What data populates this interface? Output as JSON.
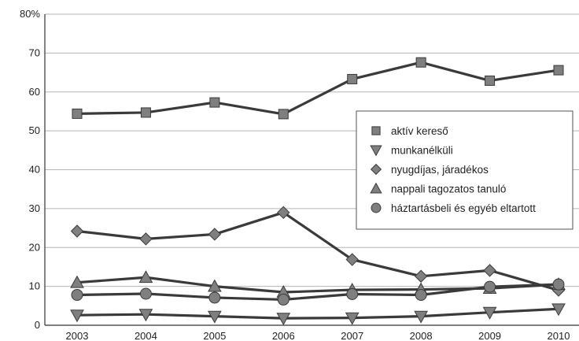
{
  "chart_data": {
    "type": "line",
    "title": "",
    "xlabel": "",
    "ylabel": "",
    "x": [
      "2003",
      "2004",
      "2005",
      "2006",
      "2007",
      "2008",
      "2009",
      "2010"
    ],
    "ylim": [
      0,
      80
    ],
    "yticks": [
      {
        "value": 0,
        "label": "0"
      },
      {
        "value": 10,
        "label": "10"
      },
      {
        "value": 20,
        "label": "20"
      },
      {
        "value": 30,
        "label": "30"
      },
      {
        "value": 40,
        "label": "40"
      },
      {
        "value": 50,
        "label": "50"
      },
      {
        "value": 60,
        "label": "60"
      },
      {
        "value": 70,
        "label": "70"
      },
      {
        "value": 80,
        "label": "80%"
      }
    ],
    "grid": true,
    "legend_position": "right",
    "line_color": "#3a3a3a",
    "marker_color": "#7f7f7f",
    "series": [
      {
        "name": "aktív kereső",
        "marker": "square",
        "values": [
          54.4,
          54.7,
          57.3,
          54.3,
          63.3,
          67.6,
          62.9,
          65.6
        ]
      },
      {
        "name": "munkanélküli",
        "marker": "triangle-down",
        "values": [
          2.6,
          2.8,
          2.3,
          1.8,
          1.9,
          2.3,
          3.3,
          4.2
        ]
      },
      {
        "name": "nyugdíjas, járadékos",
        "marker": "diamond",
        "values": [
          24.2,
          22.2,
          23.4,
          29.0,
          16.9,
          12.6,
          14.1,
          9.0
        ]
      },
      {
        "name": "nappali tagozatos tanuló",
        "marker": "triangle-up",
        "values": [
          11.0,
          12.3,
          10.0,
          8.5,
          9.1,
          9.2,
          9.5,
          10.5
        ]
      },
      {
        "name": "háztartásbeli és egyéb eltartott",
        "marker": "circle",
        "values": [
          7.8,
          8.1,
          7.1,
          6.6,
          8.0,
          7.8,
          9.9,
          10.5
        ]
      }
    ]
  }
}
